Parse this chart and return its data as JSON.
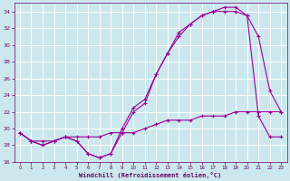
{
  "xlabel": "Windchill (Refroidissement éolien,°C)",
  "background_color": "#cce8ee",
  "grid_color": "#ffffff",
  "line_color": "#990099",
  "xlim": [
    -0.5,
    23.5
  ],
  "ylim": [
    16,
    35
  ],
  "yticks": [
    16,
    18,
    20,
    22,
    24,
    26,
    28,
    30,
    32,
    34
  ],
  "xticks": [
    0,
    1,
    2,
    3,
    4,
    5,
    6,
    7,
    8,
    9,
    10,
    11,
    12,
    13,
    14,
    15,
    16,
    17,
    18,
    19,
    20,
    21,
    22,
    23
  ],
  "line1_x": [
    0,
    1,
    2,
    3,
    4,
    5,
    6,
    7,
    8,
    9,
    10,
    11,
    12,
    13,
    14,
    15,
    16,
    17,
    18,
    19,
    20,
    21,
    22,
    23
  ],
  "line1_y": [
    19.5,
    18.5,
    18.0,
    18.5,
    19.0,
    18.5,
    17.0,
    16.5,
    17.0,
    20.0,
    22.5,
    23.5,
    26.5,
    29.0,
    31.0,
    32.5,
    33.5,
    34.0,
    34.5,
    34.5,
    33.5,
    21.5,
    19.0,
    19.0
  ],
  "line2_x": [
    0,
    1,
    2,
    3,
    4,
    5,
    6,
    7,
    8,
    9,
    10,
    11,
    12,
    13,
    14,
    15,
    16,
    17,
    18,
    19,
    20,
    21,
    22,
    23
  ],
  "line2_y": [
    19.5,
    18.5,
    18.0,
    18.5,
    19.0,
    18.5,
    17.0,
    16.5,
    17.0,
    19.5,
    22.0,
    23.0,
    26.5,
    29.0,
    31.5,
    32.5,
    33.5,
    34.0,
    34.0,
    34.0,
    33.5,
    31.0,
    24.5,
    22.0
  ],
  "line3_x": [
    0,
    1,
    2,
    3,
    4,
    5,
    6,
    7,
    8,
    9,
    10,
    11,
    12,
    13,
    14,
    15,
    16,
    17,
    18,
    19,
    20,
    21,
    22,
    23
  ],
  "line3_y": [
    19.5,
    18.5,
    18.5,
    18.5,
    19.0,
    19.0,
    19.0,
    19.0,
    19.5,
    19.5,
    19.5,
    20.0,
    20.5,
    21.0,
    21.0,
    21.0,
    21.5,
    21.5,
    21.5,
    22.0,
    22.0,
    22.0,
    22.0,
    22.0
  ]
}
